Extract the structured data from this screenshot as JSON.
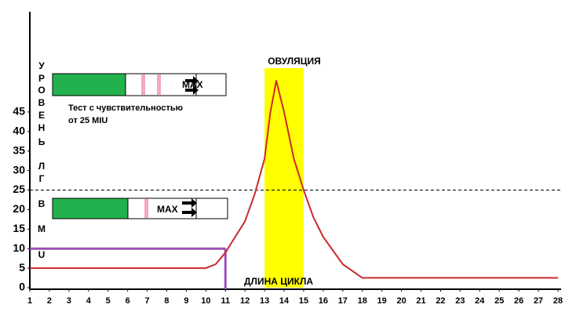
{
  "chart_data": {
    "type": "line",
    "y_label": [
      "У",
      "Р",
      "О",
      "В",
      "Е",
      "Н",
      "Ь",
      "Л",
      "Г",
      "В",
      "M",
      "U"
    ],
    "x_label": "ДЛИНА ЦИКЛА",
    "annotations": {
      "ovulation": "ОВУЛЯЦИЯ",
      "test_line1": "Тест с чувствительностью",
      "test_line2": "от 25 MIU",
      "max_top": "MAX",
      "max_bottom": "MAX"
    },
    "xlim": [
      1,
      28
    ],
    "ylim": [
      0,
      70
    ],
    "xticks": [
      1,
      2,
      3,
      4,
      5,
      6,
      7,
      8,
      9,
      10,
      11,
      12,
      13,
      14,
      15,
      16,
      17,
      18,
      19,
      20,
      21,
      22,
      23,
      24,
      25,
      26,
      27,
      28
    ],
    "yticks": [
      0,
      5,
      10,
      15,
      20,
      25,
      30,
      35,
      40,
      45
    ],
    "ovulation_band": [
      13,
      15
    ],
    "band_color": "#ffff00",
    "threshold": 25,
    "cycle_marker": {
      "x": 11,
      "y": 10,
      "color": "#9b4fb5"
    },
    "series": [
      {
        "color": "#cc2a2a",
        "x": [
          1,
          10,
          10.5,
          11,
          11.5,
          12,
          12.5,
          13,
          13.3,
          13.6,
          14,
          14.5,
          15,
          15.5,
          16,
          17,
          18,
          28
        ],
        "values": [
          5,
          5,
          6,
          9,
          13,
          17,
          24,
          33,
          45,
          53,
          45,
          33,
          25,
          18,
          13,
          6,
          2.5,
          2.5
        ]
      }
    ]
  }
}
